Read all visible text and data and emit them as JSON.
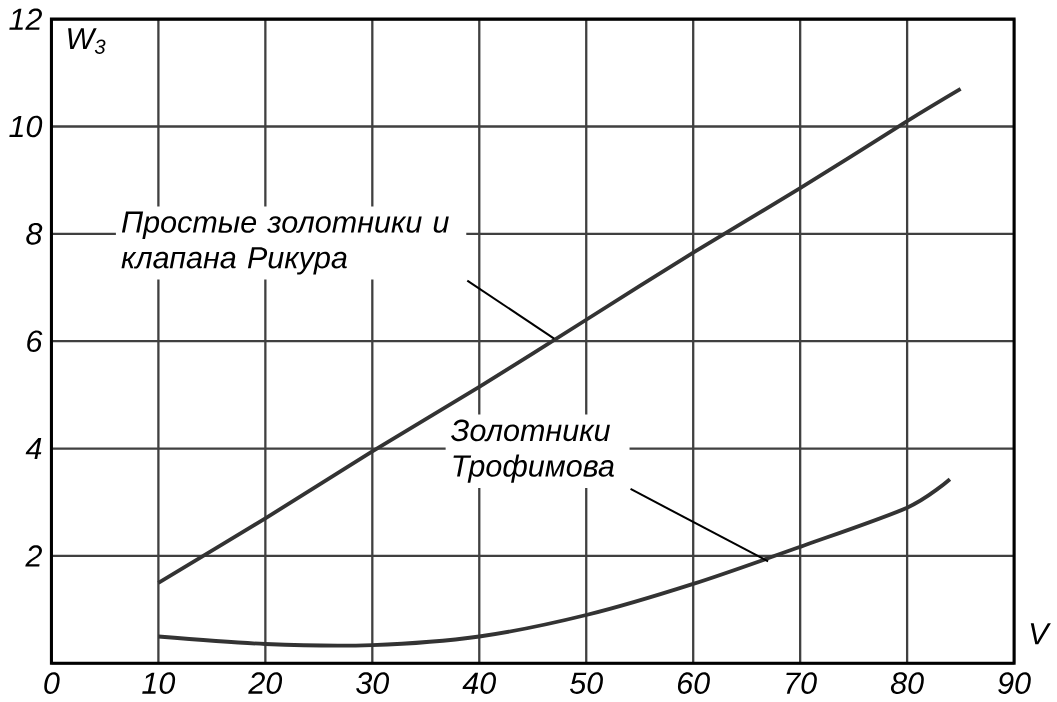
{
  "chart_data": {
    "type": "line",
    "xlabel": "V",
    "ylabel": "W$_{3}$",
    "x": [
      10,
      20,
      30,
      40,
      50,
      60,
      70,
      80,
      85
    ],
    "series": [
      {
        "color": "#333333",
        "values": [
          1.5,
          2.7,
          3.95,
          5.15,
          6.4,
          7.65,
          8.85,
          10.1,
          10.7
        ]
      },
      {
        "color": "#333333",
        "x": [
          10,
          20,
          30,
          40,
          50,
          60,
          70,
          80,
          84
        ],
        "values": [
          0.5,
          0.36,
          0.34,
          0.5,
          0.9,
          1.48,
          2.17,
          2.9,
          3.43
        ]
      }
    ],
    "annotations": [
      {
        "text": "Простые золотники и клапана Рикура",
        "x": 47,
        "y": 6.05
      },
      {
        "text": "Золотники Трофимова",
        "x": 67,
        "y": 1.9
      }
    ],
    "xlim": [
      0,
      90
    ],
    "ylim": [
      0,
      12
    ],
    "xticks": [
      0,
      10,
      20,
      30,
      40,
      50,
      60,
      70,
      80,
      90
    ],
    "yticks": [
      {
        "value": 0,
        "label": null
      },
      2,
      4,
      6,
      8,
      10,
      12
    ],
    "grid": true,
    "marker": "none",
    "line_style": "solid"
  }
}
